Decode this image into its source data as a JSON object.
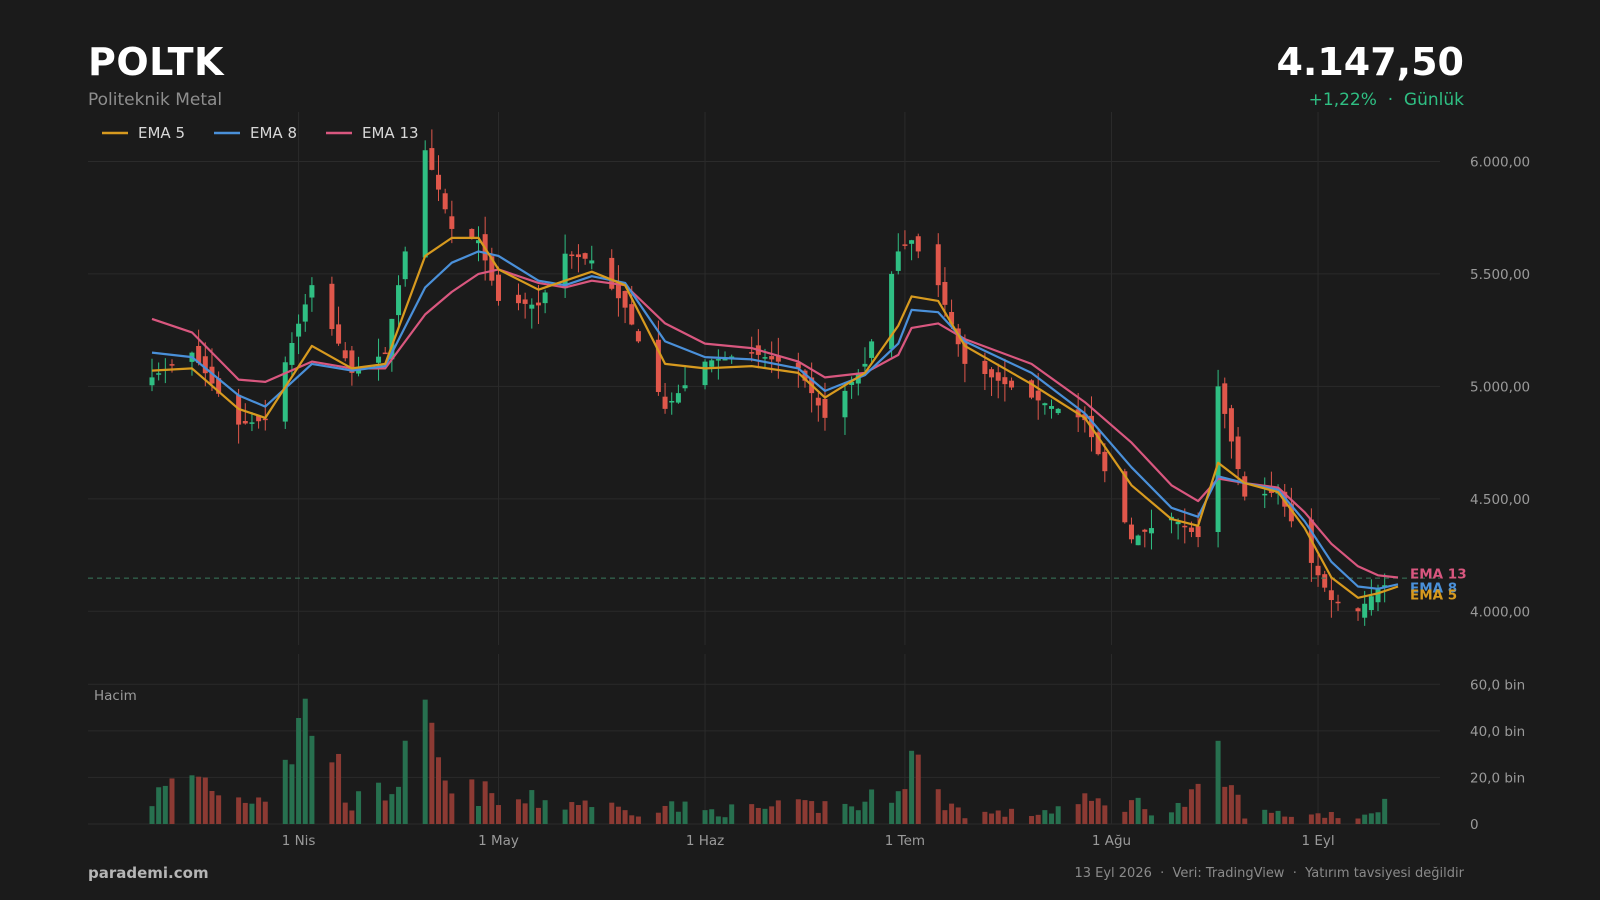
{
  "header": {
    "ticker": "POLTK",
    "company": "Politeknik Metal",
    "price": "4.147,50",
    "change": "+1,22%",
    "period": "Günlük",
    "change_separator": "·"
  },
  "footer": {
    "brand": "parademi.com",
    "date": "13 Eyl 2026",
    "source": "Veri: TradingView",
    "disclaimer": "Yatırım tavsiyesi değildir",
    "separator": "·"
  },
  "colors": {
    "background": "#1b1b1b",
    "up": "#2fbf83",
    "down": "#e0574b",
    "ema5": "#d79a1f",
    "ema8": "#4a90d9",
    "ema13": "#d9577f",
    "grid": "#2b2b2b",
    "price_line": "#3a7a5c"
  },
  "chart_data": {
    "type": "candlestick",
    "price_axis": {
      "ticks": [
        4000,
        4500,
        5000,
        5500,
        6000
      ],
      "tick_labels": [
        "4.000,00",
        "4.500,00",
        "5.000,00",
        "5.500,00",
        "6.000,00"
      ],
      "ylim": [
        3850,
        6220
      ]
    },
    "volume_axis": {
      "title": "Hacim",
      "ticks": [
        0,
        20000,
        40000,
        60000
      ],
      "tick_labels": [
        "0",
        "20,0 bin",
        "40,0 bin",
        "60,0 bin"
      ],
      "ylim": [
        0,
        67000
      ]
    },
    "x_labels": [
      {
        "date": "2026-04-01",
        "label": "1 Nis"
      },
      {
        "date": "2026-05-01",
        "label": "1 May"
      },
      {
        "date": "2026-06-01",
        "label": "1 Haz"
      },
      {
        "date": "2026-07-01",
        "label": "1 Tem"
      },
      {
        "date": "2026-08-01",
        "label": "1 Ağu"
      },
      {
        "date": "2026-09-01",
        "label": "1 Eyl"
      }
    ],
    "last_price": 4147.5,
    "legend": [
      "EMA 5",
      "EMA 8",
      "EMA 13"
    ],
    "end_labels": [
      "EMA 13",
      "EMA 8",
      "EMA 5"
    ],
    "anchors": [
      {
        "date": "2026-03-10",
        "close": 5040,
        "ema5": 5070,
        "ema8": 5150,
        "ema13": 5300,
        "vol": 12000
      },
      {
        "date": "2026-03-16",
        "close": 5150,
        "ema5": 5080,
        "ema8": 5130,
        "ema13": 5240,
        "vol": 24000
      },
      {
        "date": "2026-03-23",
        "close": 4830,
        "ema5": 4900,
        "ema8": 4960,
        "ema13": 5030,
        "vol": 12000
      },
      {
        "date": "2026-03-27",
        "close": 4850,
        "ema5": 4860,
        "ema8": 4910,
        "ema13": 5020,
        "vol": 16000
      },
      {
        "date": "2026-04-03",
        "close": 5450,
        "ema5": 5180,
        "ema8": 5100,
        "ema13": 5110,
        "vol": 56000
      },
      {
        "date": "2026-04-09",
        "close": 5060,
        "ema5": 5080,
        "ema8": 5070,
        "ema13": 5080,
        "vol": 10000
      },
      {
        "date": "2026-04-14",
        "close": 5150,
        "ema5": 5100,
        "ema8": 5090,
        "ema13": 5080,
        "vol": 15000
      },
      {
        "date": "2026-04-20",
        "close": 6050,
        "ema5": 5580,
        "ema8": 5440,
        "ema13": 5320,
        "vol": 42000
      },
      {
        "date": "2026-04-24",
        "close": 5700,
        "ema5": 5660,
        "ema8": 5550,
        "ema13": 5420,
        "vol": 12000
      },
      {
        "date": "2026-04-28",
        "close": 5650,
        "ema5": 5660,
        "ema8": 5600,
        "ema13": 5500,
        "vol": 16000
      },
      {
        "date": "2026-05-01",
        "close": 5380,
        "ema5": 5520,
        "ema8": 5580,
        "ema13": 5520,
        "vol": 10000
      },
      {
        "date": "2026-05-07",
        "close": 5360,
        "ema5": 5430,
        "ema8": 5470,
        "ema13": 5460,
        "vol": 11000
      },
      {
        "date": "2026-05-11",
        "close": 5590,
        "ema5": 5470,
        "ema8": 5450,
        "ema13": 5440,
        "vol": 10000
      },
      {
        "date": "2026-05-15",
        "close": 5560,
        "ema5": 5510,
        "ema8": 5490,
        "ema13": 5470,
        "vol": 11000
      },
      {
        "date": "2026-05-20",
        "close": 5350,
        "ema5": 5450,
        "ema8": 5460,
        "ema13": 5450,
        "vol": 6000
      },
      {
        "date": "2026-05-26",
        "close": 4900,
        "ema5": 5100,
        "ema8": 5200,
        "ema13": 5280,
        "vol": 9000
      },
      {
        "date": "2026-06-01",
        "close": 5110,
        "ema5": 5080,
        "ema8": 5130,
        "ema13": 5190,
        "vol": 6000
      },
      {
        "date": "2026-06-08",
        "close": 5150,
        "ema5": 5090,
        "ema8": 5120,
        "ema13": 5170,
        "vol": 7000
      },
      {
        "date": "2026-06-15",
        "close": 5080,
        "ema5": 5060,
        "ema8": 5080,
        "ema13": 5110,
        "vol": 8000
      },
      {
        "date": "2026-06-19",
        "close": 4860,
        "ema5": 4950,
        "ema8": 4980,
        "ema13": 5040,
        "vol": 9000
      },
      {
        "date": "2026-06-25",
        "close": 5100,
        "ema5": 5060,
        "ema8": 5050,
        "ema13": 5060,
        "vol": 9000
      },
      {
        "date": "2026-06-30",
        "close": 5600,
        "ema5": 5270,
        "ema8": 5190,
        "ema13": 5140,
        "vol": 22000
      },
      {
        "date": "2026-07-02",
        "close": 5650,
        "ema5": 5400,
        "ema8": 5340,
        "ema13": 5260,
        "vol": 32000
      },
      {
        "date": "2026-07-06",
        "close": 5450,
        "ema5": 5380,
        "ema8": 5330,
        "ema13": 5280,
        "vol": 13000
      },
      {
        "date": "2026-07-10",
        "close": 5100,
        "ema5": 5180,
        "ema8": 5200,
        "ema13": 5210,
        "vol": 5000
      },
      {
        "date": "2026-07-20",
        "close": 4950,
        "ema5": 5010,
        "ema8": 5060,
        "ema13": 5100,
        "vol": 5000
      },
      {
        "date": "2026-07-28",
        "close": 4850,
        "ema5": 4860,
        "ema8": 4880,
        "ema13": 4930,
        "vol": 10000
      },
      {
        "date": "2026-08-04",
        "close": 4320,
        "ema5": 4560,
        "ema8": 4640,
        "ema13": 4750,
        "vol": 10000
      },
      {
        "date": "2026-08-10",
        "close": 4420,
        "ema5": 4410,
        "ema8": 4460,
        "ema13": 4560,
        "vol": 6000
      },
      {
        "date": "2026-08-14",
        "close": 4330,
        "ema5": 4380,
        "ema8": 4420,
        "ema13": 4490,
        "vol": 14000
      },
      {
        "date": "2026-08-17",
        "close": 5000,
        "ema5": 4660,
        "ema8": 4600,
        "ema13": 4590,
        "vol": 27000
      },
      {
        "date": "2026-08-21",
        "close": 4510,
        "ema5": 4570,
        "ema8": 4570,
        "ema13": 4570,
        "vol": 5000
      },
      {
        "date": "2026-08-26",
        "close": 4530,
        "ema5": 4530,
        "ema8": 4540,
        "ema13": 4550,
        "vol": 5000
      },
      {
        "date": "2026-08-30",
        "close": 4270,
        "ema5": 4370,
        "ema8": 4400,
        "ema13": 4440,
        "vol": 4000
      },
      {
        "date": "2026-09-03",
        "close": 4050,
        "ema5": 4150,
        "ema8": 4220,
        "ema13": 4300,
        "vol": 5000
      },
      {
        "date": "2026-09-07",
        "close": 4000,
        "ema5": 4060,
        "ema8": 4110,
        "ema13": 4200,
        "vol": 3000
      },
      {
        "date": "2026-09-10",
        "close": 4100,
        "ema5": 4080,
        "ema8": 4100,
        "ema13": 4160,
        "vol": 8000
      },
      {
        "date": "2026-09-13",
        "close": 4147.5,
        "ema5": 4110,
        "ema8": 4120,
        "ema13": 4150,
        "vol": 12000
      }
    ]
  }
}
